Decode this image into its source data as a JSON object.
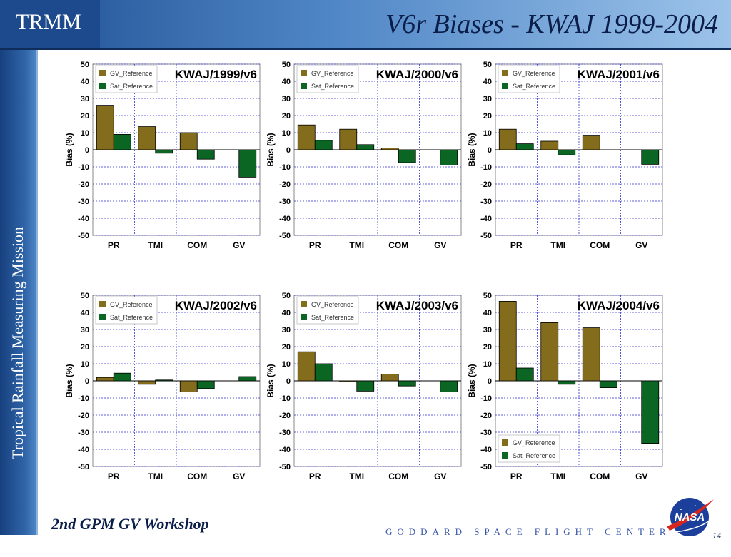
{
  "header": {
    "brand": "TRMM",
    "title": "V6r Biases - KWAJ 1999-2004"
  },
  "sidebar": {
    "text": "Tropical Rainfall Measuring Mission"
  },
  "footer": {
    "workshop": "2nd GPM GV Workshop",
    "center": "GODDARD SPACE FLIGHT CENTER",
    "page_number": "14",
    "logo_text": "NASA"
  },
  "colors": {
    "gv_reference": "#836c1b",
    "sat_reference": "#0b6623",
    "header_dark": "#1d4a8c"
  },
  "chart_data": [
    {
      "type": "bar",
      "title": "KWAJ/1999/v6",
      "ylabel": "Bias (%)",
      "ylim": [
        -50,
        50
      ],
      "yticks": [
        "50",
        "40",
        "30",
        "20",
        "10",
        "0",
        "-10",
        "-20",
        "-30",
        "-40",
        "-50"
      ],
      "categories": [
        "PR",
        "TMI",
        "COM",
        "GV"
      ],
      "grid": true,
      "legend_position": "top-left",
      "series": [
        {
          "name": "GV_Reference",
          "values": [
            26,
            13.5,
            10,
            0
          ]
        },
        {
          "name": "Sat_Reference",
          "values": [
            9,
            -2,
            -5.5,
            -16
          ]
        }
      ]
    },
    {
      "type": "bar",
      "title": "KWAJ/2000/v6",
      "ylabel": "Bias (%)",
      "ylim": [
        -50,
        50
      ],
      "yticks": [
        "50",
        "40",
        "30",
        "20",
        "10",
        "0",
        "-10",
        "-20",
        "-30",
        "-40",
        "-50"
      ],
      "categories": [
        "PR",
        "TMI",
        "COM",
        "GV"
      ],
      "grid": true,
      "legend_position": "top-left",
      "series": [
        {
          "name": "GV_Reference",
          "values": [
            14.5,
            12,
            1,
            0
          ]
        },
        {
          "name": "Sat_Reference",
          "values": [
            5.5,
            3,
            -7.5,
            -9
          ]
        }
      ]
    },
    {
      "type": "bar",
      "title": "KWAJ/2001/v6",
      "ylabel": "Bias (%)",
      "ylim": [
        -50,
        50
      ],
      "yticks": [
        "50",
        "40",
        "30",
        "20",
        "10",
        "0",
        "-10",
        "-20",
        "-30",
        "-40",
        "-50"
      ],
      "categories": [
        "PR",
        "TMI",
        "COM",
        "GV"
      ],
      "grid": true,
      "legend_position": "top-left",
      "series": [
        {
          "name": "GV_Reference",
          "values": [
            12,
            5,
            8.5,
            0
          ]
        },
        {
          "name": "Sat_Reference",
          "values": [
            3.5,
            -3,
            0,
            -8.5
          ]
        }
      ]
    },
    {
      "type": "bar",
      "title": "KWAJ/2002/v6",
      "ylabel": "Bias (%)",
      "ylim": [
        -50,
        50
      ],
      "yticks": [
        "50",
        "40",
        "30",
        "20",
        "10",
        "0",
        "-10",
        "-20",
        "-30",
        "-40",
        "-50"
      ],
      "categories": [
        "PR",
        "TMI",
        "COM",
        "GV"
      ],
      "grid": true,
      "legend_position": "top-left",
      "series": [
        {
          "name": "GV_Reference",
          "values": [
            2,
            -2,
            -6.5,
            0
          ]
        },
        {
          "name": "Sat_Reference",
          "values": [
            4.5,
            0.5,
            -4.5,
            2.5
          ]
        }
      ]
    },
    {
      "type": "bar",
      "title": "KWAJ/2003/v6",
      "ylabel": "Bias (%)",
      "ylim": [
        -50,
        50
      ],
      "yticks": [
        "50",
        "40",
        "30",
        "20",
        "10",
        "0",
        "-10",
        "-20",
        "-30",
        "-40",
        "-50"
      ],
      "categories": [
        "PR",
        "TMI",
        "COM",
        "GV"
      ],
      "grid": true,
      "legend_position": "top-left",
      "series": [
        {
          "name": "GV_Reference",
          "values": [
            17,
            -0.5,
            4,
            0
          ]
        },
        {
          "name": "Sat_Reference",
          "values": [
            10,
            -6,
            -3,
            -6.5
          ]
        }
      ]
    },
    {
      "type": "bar",
      "title": "KWAJ/2004/v6",
      "ylabel": "Bias (%)",
      "ylim": [
        -50,
        50
      ],
      "yticks": [
        "50",
        "40",
        "30",
        "20",
        "10",
        "0",
        "-10",
        "-20",
        "-30",
        "-40",
        "-50"
      ],
      "categories": [
        "PR",
        "TMI",
        "COM",
        "GV"
      ],
      "grid": true,
      "legend_position": "bottom-left",
      "series": [
        {
          "name": "GV_Reference",
          "values": [
            46.5,
            34,
            31,
            0
          ]
        },
        {
          "name": "Sat_Reference",
          "values": [
            7.5,
            -2,
            -4,
            -36.5
          ]
        }
      ]
    }
  ]
}
